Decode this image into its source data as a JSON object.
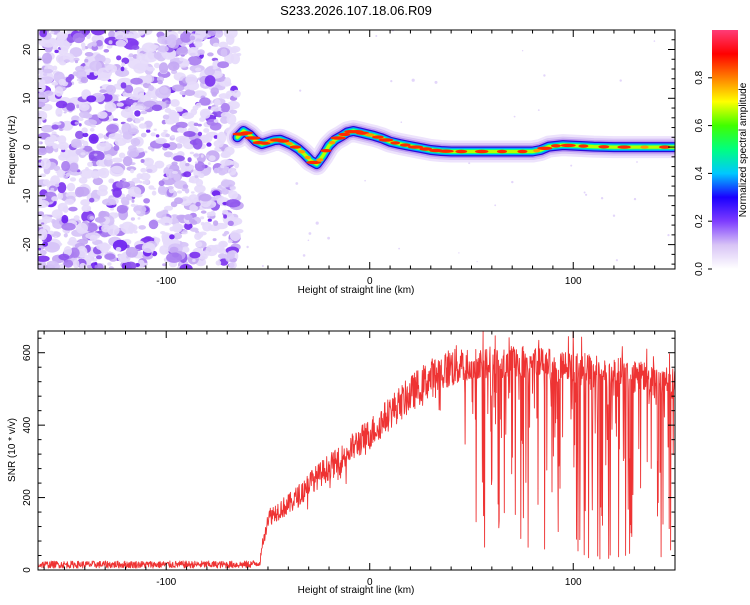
{
  "figure": {
    "title": "S233.2026.107.18.06.R09"
  },
  "chart_data": [
    {
      "type": "heatmap",
      "title": "S233.2026.107.18.06.R09",
      "xlabel": "Height of straight line (km)",
      "ylabel": "Frequency (Hz)",
      "xlim": [
        -163,
        150
      ],
      "ylim": [
        -25,
        24
      ],
      "x_ticks": [
        -100,
        0,
        100
      ],
      "y_ticks": [
        -20,
        -10,
        0,
        10,
        20
      ],
      "noise_region_x": [
        -163,
        -65
      ],
      "signal_trace": {
        "x": [
          -65,
          -62,
          -59,
          -56,
          -53,
          -50,
          -47,
          -44,
          -41,
          -38,
          -35,
          -32,
          -29,
          -26,
          -23,
          -20,
          -17,
          -14,
          -11,
          -8,
          -5,
          -2,
          2,
          6,
          10,
          15,
          20,
          25,
          30,
          35,
          40,
          50,
          60,
          70,
          80,
          84,
          88,
          95,
          100,
          110,
          120,
          130,
          140,
          150
        ],
        "y": [
          2.0,
          3.3,
          2.5,
          1.2,
          0.6,
          1.0,
          1.4,
          1.5,
          1.0,
          0.4,
          -0.4,
          -1.5,
          -2.8,
          -3.5,
          -1.8,
          0.3,
          1.5,
          2.2,
          3.0,
          3.3,
          3.0,
          2.7,
          2.3,
          1.8,
          1.1,
          0.6,
          0.2,
          -0.2,
          -0.6,
          -0.8,
          -0.9,
          -0.9,
          -0.9,
          -0.9,
          -0.9,
          -0.6,
          0.1,
          0.4,
          0.3,
          0.1,
          0.0,
          0.0,
          0.0,
          0.0
        ]
      },
      "colorbar": {
        "label": "Normalized spectral amplitude",
        "range": [
          0.0,
          1.0
        ],
        "ticks": [
          "0.0",
          "0.2",
          "0.4",
          "0.6",
          "0.8"
        ],
        "colors": [
          "#ffffff",
          "#d8c4f6",
          "#7e3cff",
          "#1a00ff",
          "#00c8ff",
          "#00ff80",
          "#40ff00",
          "#ffff00",
          "#ff8000",
          "#ff0000",
          "#ff3c78"
        ]
      }
    },
    {
      "type": "line",
      "xlabel": "Height of straight line (km)",
      "ylabel": "SNR (10 * v/v)",
      "xlim": [
        -163,
        150
      ],
      "ylim": [
        0,
        660
      ],
      "x_ticks": [
        -100,
        0,
        100
      ],
      "y_ticks": [
        0,
        200,
        400,
        600
      ],
      "series": [
        {
          "name": "SNR",
          "color": "#ee3333",
          "x": [
            -163,
            -140,
            -120,
            -100,
            -80,
            -60,
            -54,
            -52,
            -50,
            -45,
            -40,
            -35,
            -30,
            -25,
            -20,
            -15,
            -10,
            -5,
            0,
            5,
            10,
            15,
            20,
            25,
            30,
            35,
            40,
            45,
            50,
            55,
            60,
            65,
            70,
            75,
            80,
            85,
            90,
            95,
            100,
            105,
            110,
            115,
            120,
            125,
            130,
            135,
            140,
            145,
            150
          ],
          "y": [
            15,
            15,
            15,
            15,
            15,
            15,
            20,
            95,
            145,
            165,
            180,
            205,
            240,
            260,
            285,
            300,
            330,
            355,
            375,
            405,
            435,
            460,
            485,
            510,
            530,
            545,
            560,
            565,
            570,
            575,
            575,
            575,
            575,
            575,
            570,
            570,
            565,
            560,
            560,
            555,
            550,
            550,
            545,
            540,
            535,
            530,
            520,
            515,
            510
          ],
          "dropout_from_x": 45,
          "noise_amplitude_before_x": 10
        }
      ]
    }
  ]
}
